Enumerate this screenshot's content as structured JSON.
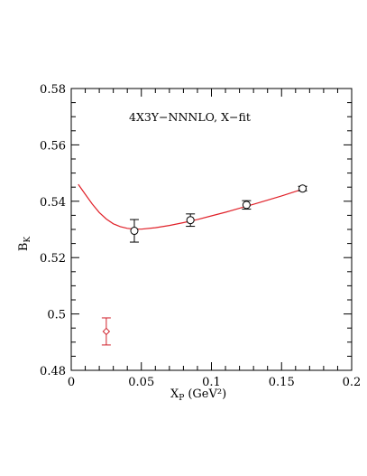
{
  "chart_data": {
    "type": "scatter",
    "title": "",
    "annotation": "4X3Y−NNNLO, X−fit",
    "xlabel": "X",
    "xlabel_sub": "P",
    "xlabel_unit": "(GeV²)",
    "ylabel": "B",
    "ylabel_sub": "K",
    "xlim": [
      0,
      0.2
    ],
    "ylim": [
      0.48,
      0.58
    ],
    "x_ticks": [
      "0",
      "0.05",
      "0.1",
      "0.15",
      "0.2"
    ],
    "y_ticks": [
      "0.48",
      "0.5",
      "0.52",
      "0.54",
      "0.56",
      "0.58"
    ],
    "grid": false,
    "series": [
      {
        "marker": "circle",
        "color": "#000000",
        "points": [
          {
            "x": 0.045,
            "y": 0.5295,
            "err": 0.004
          },
          {
            "x": 0.085,
            "y": 0.5333,
            "err": 0.0022
          },
          {
            "x": 0.125,
            "y": 0.5387,
            "err": 0.0015
          },
          {
            "x": 0.165,
            "y": 0.5445,
            "err": 0.0008
          }
        ]
      },
      {
        "marker": "diamond",
        "color": "#d0202a",
        "points": [
          {
            "x": 0.025,
            "y": 0.4938,
            "err": 0.0048
          }
        ]
      },
      {
        "marker": "line",
        "color": "#e02028",
        "points": [
          {
            "x": 0.005,
            "y": 0.546
          },
          {
            "x": 0.01,
            "y": 0.5425
          },
          {
            "x": 0.015,
            "y": 0.539
          },
          {
            "x": 0.02,
            "y": 0.536
          },
          {
            "x": 0.025,
            "y": 0.5337
          },
          {
            "x": 0.03,
            "y": 0.532
          },
          {
            "x": 0.035,
            "y": 0.531
          },
          {
            "x": 0.04,
            "y": 0.5304
          },
          {
            "x": 0.045,
            "y": 0.5301
          },
          {
            "x": 0.05,
            "y": 0.5301
          },
          {
            "x": 0.06,
            "y": 0.5306
          },
          {
            "x": 0.07,
            "y": 0.5314
          },
          {
            "x": 0.08,
            "y": 0.5324
          },
          {
            "x": 0.09,
            "y": 0.5335
          },
          {
            "x": 0.1,
            "y": 0.5348
          },
          {
            "x": 0.11,
            "y": 0.5361
          },
          {
            "x": 0.12,
            "y": 0.5375
          },
          {
            "x": 0.13,
            "y": 0.5389
          },
          {
            "x": 0.14,
            "y": 0.5404
          },
          {
            "x": 0.15,
            "y": 0.5419
          },
          {
            "x": 0.16,
            "y": 0.5435
          },
          {
            "x": 0.165,
            "y": 0.5443
          }
        ]
      }
    ]
  }
}
